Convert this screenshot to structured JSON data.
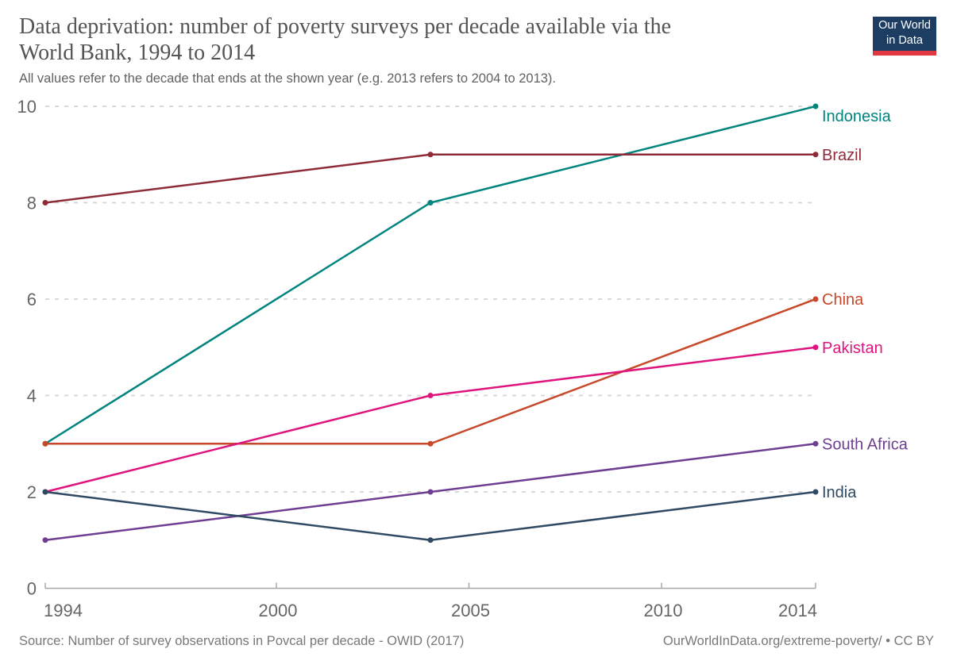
{
  "header": {
    "title_line1": "Data deprivation: number of poverty surveys per decade available via the",
    "title_line2": "World Bank, 1994 to 2014",
    "subtitle": "All values refer to the decade that ends at the shown year (e.g. 2013 refers to 2004 to 2013)."
  },
  "logo": {
    "line1": "Our World",
    "line2": "in Data",
    "bg_color": "#1d3d63",
    "bar_color": "#e0383e"
  },
  "chart_data": {
    "type": "line",
    "title": "Data deprivation: number of poverty surveys per decade available via the World Bank, 1994 to 2014",
    "xlabel": "",
    "ylabel": "",
    "x": [
      1994,
      2004,
      2014
    ],
    "xticks": [
      1994,
      2000,
      2005,
      2010,
      2014
    ],
    "yticks": [
      0,
      2,
      4,
      6,
      8,
      10
    ],
    "xlim": [
      1994,
      2014
    ],
    "ylim": [
      0,
      10
    ],
    "grid": "horizontal-dashed",
    "legend_position": "right-end-labels",
    "series": [
      {
        "name": "Indonesia",
        "color": "#00847e",
        "values": [
          3,
          8,
          10
        ],
        "label_dy": 12
      },
      {
        "name": "Brazil",
        "color": "#8f2a38",
        "values": [
          8,
          9,
          9
        ],
        "label_dy": 0
      },
      {
        "name": "China",
        "color": "#c7492a",
        "values": [
          3,
          3,
          6
        ],
        "label_dy": 0
      },
      {
        "name": "Pakistan",
        "color": "#e0147d",
        "values": [
          2,
          4,
          5
        ],
        "label_dy": 0
      },
      {
        "name": "South Africa",
        "color": "#6d3e91",
        "values": [
          1,
          2,
          3
        ],
        "label_dy": 0
      },
      {
        "name": "India",
        "color": "#2f4a63",
        "values": [
          2,
          1,
          2
        ],
        "label_dy": 0
      }
    ],
    "axis_color": "#a8a8a8",
    "grid_color": "#d4d4d4",
    "tick_label_color": "#666666"
  },
  "footer": {
    "source": "Source: Number of survey observations in Povcal per decade - OWID (2017)",
    "link": "OurWorldInData.org/extreme-poverty/ • CC BY"
  }
}
